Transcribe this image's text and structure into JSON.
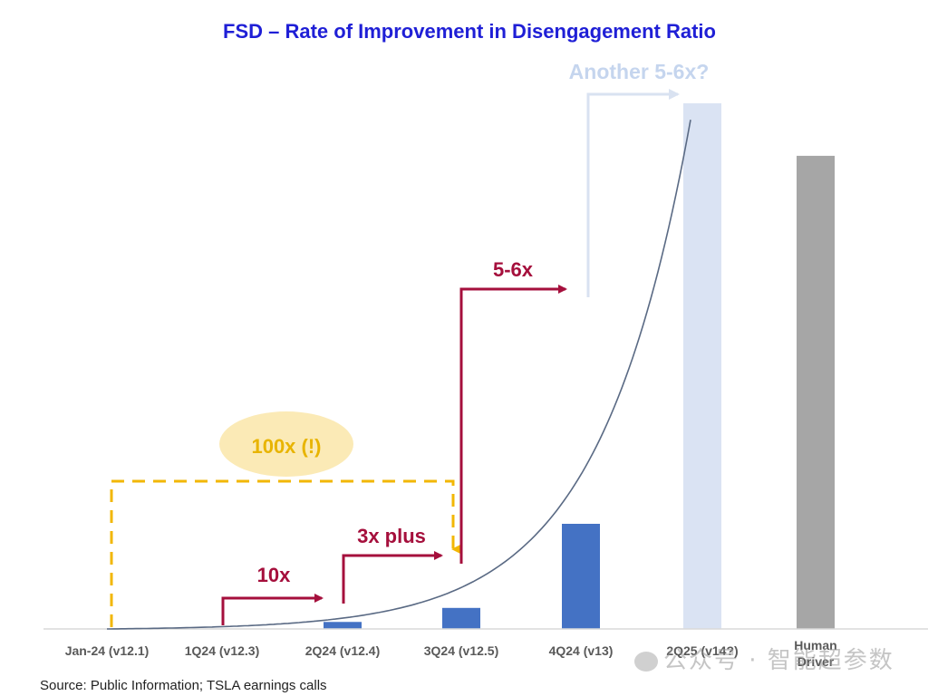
{
  "chart_data": {
    "type": "bar",
    "title": "FSD – Rate of Improvement in Disengagement Ratio",
    "categories": [
      "Jan-24 (v12.1)",
      "1Q24 (v12.3)",
      "2Q24 (v12.4)",
      "3Q24 (v12.5)",
      "4Q24 (v13)",
      "2Q25 (v14?)",
      "Human\nDriver"
    ],
    "values": [
      0.1,
      1,
      23.3,
      69.9,
      349.5,
      1747.5,
      1573
    ],
    "ylim": [
      0,
      1747.5
    ],
    "bar_colors": [
      "#4472c4",
      "#4472c4",
      "#4472c4",
      "#4472c4",
      "#4472c4",
      "#dae3f3",
      "#a6a6a6"
    ],
    "annotations": {
      "step_10x": "10x",
      "step_3x": "3x plus",
      "step_5_6x": "5-6x",
      "step_another": "Another 5-6x?",
      "total_100x": "100x (!)"
    },
    "colors": {
      "title": "#1f1fd6",
      "arrow_red": "#a50f3c",
      "arrow_light": "#d9e2f1",
      "another_text": "#c5d5ee",
      "dashed_gold": "#f2b705",
      "ellipse_fill": "#fbeab6",
      "ellipse_text": "#e8b400",
      "curve": "#5a6a84"
    },
    "grid": false,
    "legend": "none"
  },
  "source": "Source: Public Information; TSLA earnings calls",
  "watermark": "公众号 · 智能超参数"
}
